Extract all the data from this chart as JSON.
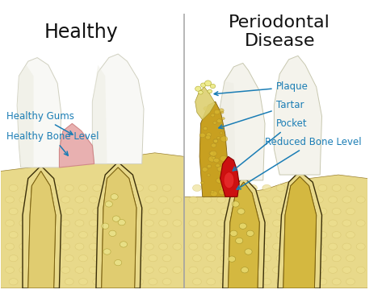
{
  "title_left": "Healthy",
  "title_right": "Periodontal\nDisease",
  "bg_color": "#ffffff",
  "divider_color": "#aaaaaa",
  "labels": {
    "healthy_gums": "Healthy Gums",
    "healthy_bone": "Healthy Bone Level",
    "plaque": "Plaque",
    "tartar": "Tartar",
    "pocket": "Pocket",
    "reduced_bone": "Reduced Bone Level"
  },
  "annotation_color": "#1a7db5",
  "tooth_white": "#f8f8f5",
  "bone_fill": "#e8d98a",
  "bone_mid": "#d4c06a",
  "bone_dark": "#9a8030",
  "bone_outline": "#7a6010",
  "root_fill": "#e0cc70",
  "root_outline": "#7a6010",
  "socket_dark": "#3a2e08",
  "gum_pink": "#e8b0b0",
  "gum_pink_dark": "#d08888",
  "gum_red": "#cc1111",
  "gum_red_dark": "#880000",
  "tartar_fill": "#c8a828",
  "tartar_dark": "#907010",
  "plaque_fill": "#ddd070",
  "plaque_bubble": "#f0e890",
  "text_color": "#111111",
  "title_fontsize": 17,
  "label_fontsize": 8.5
}
